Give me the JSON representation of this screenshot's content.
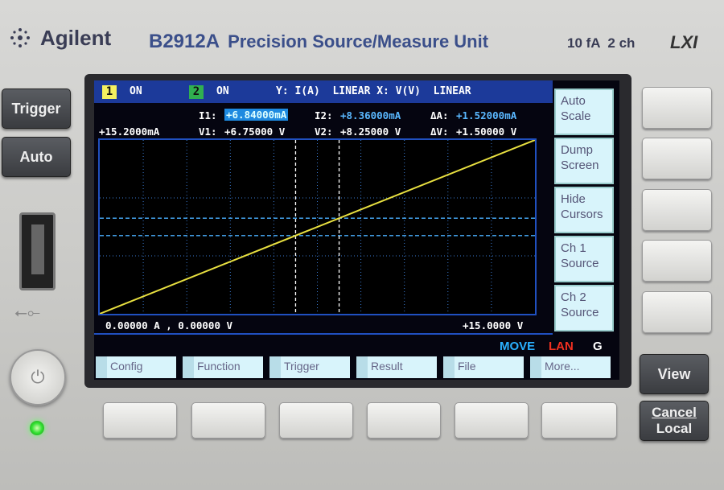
{
  "header": {
    "brand": "Agilent",
    "model": "B2912A",
    "description": "Precision Source/Measure Unit",
    "spec": "10 fA  2 ch",
    "lxi": "LXI"
  },
  "left_buttons": {
    "trigger": "Trigger",
    "auto": "Auto"
  },
  "right_buttons": {
    "view": "View",
    "cancel_local_1": "Cancel",
    "cancel_local_2": "Local"
  },
  "screen": {
    "ch1": {
      "num": "1",
      "state": "ON",
      "color": "#f4f060"
    },
    "ch2": {
      "num": "2",
      "state": "ON",
      "color": "#30b050"
    },
    "axes_info": "Y: I(A)  LINEAR X: V(V)  LINEAR",
    "y_max": "+15.2000mA",
    "readouts": {
      "i1_label": "I1:",
      "i1": "+6.84000mA",
      "i2_label": "I2:",
      "i2": "+8.36000mA",
      "da_label": "ΔA:",
      "da": "+1.52000mA",
      "v1_label": "V1:",
      "v1": "+6.75000 V",
      "v2_label": "V2:",
      "v2": "+8.25000 V",
      "dv_label": "ΔV:",
      "dv": "+1.50000 V"
    },
    "origin": "0.00000 A , 0.00000 V",
    "x_max": "+15.0000 V",
    "status": {
      "move": "MOVE",
      "lan": "LAN",
      "g": "G"
    },
    "softkeys": [
      "Auto Scale",
      "Dump Screen",
      "Hide Cursors",
      "Ch 1 Source",
      "Ch 2 Source"
    ],
    "menu": [
      "Config",
      "Function",
      "Trigger",
      "Result",
      "File",
      "More..."
    ]
  },
  "graph": {
    "x_range_V": [
      0,
      15
    ],
    "y_range_mA": [
      0,
      15.2
    ],
    "trace": [
      [
        0,
        0
      ],
      [
        15,
        15.2
      ]
    ],
    "cursor1": {
      "v": 6.75,
      "i": 6.84
    },
    "cursor2": {
      "v": 8.25,
      "i": 8.36
    },
    "trace_color": "#e8e040"
  }
}
